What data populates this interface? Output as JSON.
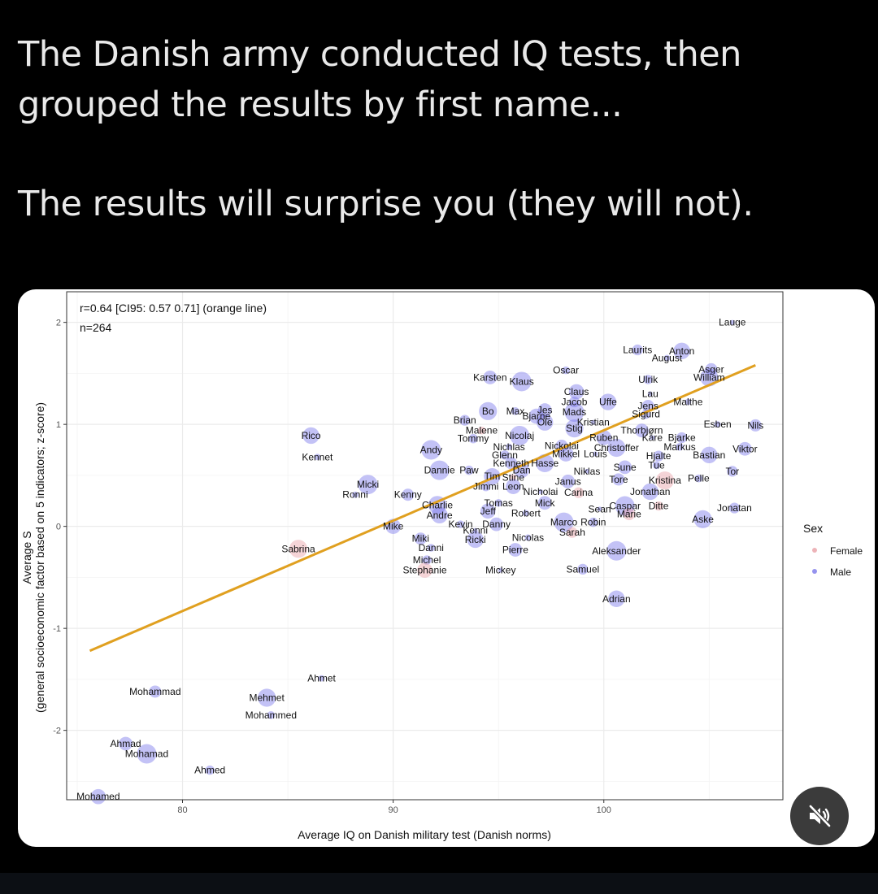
{
  "post": {
    "line1": "The Danish army conducted IQ tests, then",
    "line2": "grouped the results by first name...",
    "line3": "The results will surprise you (they will not)."
  },
  "colors": {
    "female": "#e8a0a6",
    "male": "#7b78ea",
    "fit_line": "#e0a020",
    "grid": "#ebebeb"
  },
  "mute_button": {
    "icon": "speaker-muted-icon"
  },
  "chart_data": {
    "type": "scatter",
    "annotation_1": "r=0.64 [CI95: 0.57 0.71] (orange line)",
    "annotation_2": "n=264",
    "xlabel": "Average IQ on Danish military test (Danish norms)",
    "ylabel_line1": "Average S",
    "ylabel_line2": "(general socioeconomic factor based on 5 indicators; z-score)",
    "xlim": [
      74.5,
      108.5
    ],
    "ylim": [
      -2.68,
      2.3
    ],
    "x_ticks": [
      "80",
      "90",
      "100"
    ],
    "y_ticks": [
      "-2",
      "-1",
      "0",
      "1",
      "2"
    ],
    "legend": {
      "title": "Sex",
      "items": [
        "Female",
        "Male"
      ],
      "position": "right"
    },
    "fit_line": {
      "x": [
        75.6,
        107.2
      ],
      "y": [
        -1.22,
        1.58
      ]
    },
    "points": [
      {
        "name": "Lauge",
        "x": 106.1,
        "y": 2.0,
        "sex": "Male"
      },
      {
        "name": "Laurits",
        "x": 101.6,
        "y": 1.73,
        "sex": "Male"
      },
      {
        "name": "Anton",
        "x": 103.7,
        "y": 1.72,
        "sex": "Male"
      },
      {
        "name": "August",
        "x": 103.0,
        "y": 1.65,
        "sex": "Male"
      },
      {
        "name": "Asger",
        "x": 105.1,
        "y": 1.54,
        "sex": "Male"
      },
      {
        "name": "William",
        "x": 105.0,
        "y": 1.46,
        "sex": "Male"
      },
      {
        "name": "Oscar",
        "x": 98.2,
        "y": 1.53,
        "sex": "Male"
      },
      {
        "name": "Karsten",
        "x": 94.6,
        "y": 1.46,
        "sex": "Male"
      },
      {
        "name": "Klaus",
        "x": 96.1,
        "y": 1.42,
        "sex": "Male"
      },
      {
        "name": "Ulrik",
        "x": 102.1,
        "y": 1.44,
        "sex": "Male"
      },
      {
        "name": "Claus",
        "x": 98.7,
        "y": 1.32,
        "sex": "Male"
      },
      {
        "name": "Lau",
        "x": 102.2,
        "y": 1.3,
        "sex": "Male"
      },
      {
        "name": "Jacob",
        "x": 98.6,
        "y": 1.22,
        "sex": "Male"
      },
      {
        "name": "Uffe",
        "x": 100.2,
        "y": 1.22,
        "sex": "Male"
      },
      {
        "name": "Malthe",
        "x": 104.0,
        "y": 1.22,
        "sex": "Male"
      },
      {
        "name": "Jens",
        "x": 102.1,
        "y": 1.18,
        "sex": "Male"
      },
      {
        "name": "Bo",
        "x": 94.5,
        "y": 1.13,
        "sex": "Male"
      },
      {
        "name": "Max",
        "x": 95.8,
        "y": 1.13,
        "sex": "Male"
      },
      {
        "name": "Jes",
        "x": 97.2,
        "y": 1.14,
        "sex": "Male"
      },
      {
        "name": "Mads",
        "x": 98.6,
        "y": 1.12,
        "sex": "Male"
      },
      {
        "name": "Sigurd",
        "x": 102.0,
        "y": 1.1,
        "sex": "Male"
      },
      {
        "name": "Bjarne",
        "x": 96.8,
        "y": 1.08,
        "sex": "Male"
      },
      {
        "name": "Kristian",
        "x": 99.5,
        "y": 1.02,
        "sex": "Male"
      },
      {
        "name": "Brian",
        "x": 93.4,
        "y": 1.04,
        "sex": "Male"
      },
      {
        "name": "Ole",
        "x": 97.2,
        "y": 1.02,
        "sex": "Male"
      },
      {
        "name": "Esben",
        "x": 105.4,
        "y": 1.0,
        "sex": "Male"
      },
      {
        "name": "Nils",
        "x": 107.2,
        "y": 0.99,
        "sex": "Male"
      },
      {
        "name": "Stig",
        "x": 98.6,
        "y": 0.96,
        "sex": "Male"
      },
      {
        "name": "Malene",
        "x": 94.2,
        "y": 0.94,
        "sex": "Female"
      },
      {
        "name": "Thorbjørn",
        "x": 101.8,
        "y": 0.94,
        "sex": "Male"
      },
      {
        "name": "Nicolaj",
        "x": 96.0,
        "y": 0.89,
        "sex": "Male"
      },
      {
        "name": "Tommy",
        "x": 93.8,
        "y": 0.86,
        "sex": "Male"
      },
      {
        "name": "Ruben",
        "x": 100.0,
        "y": 0.87,
        "sex": "Male"
      },
      {
        "name": "Kåre",
        "x": 102.3,
        "y": 0.87,
        "sex": "Male"
      },
      {
        "name": "Bjarke",
        "x": 103.7,
        "y": 0.87,
        "sex": "Male"
      },
      {
        "name": "Rico",
        "x": 86.1,
        "y": 0.89,
        "sex": "Male"
      },
      {
        "name": "Nichlas",
        "x": 95.5,
        "y": 0.78,
        "sex": "Male"
      },
      {
        "name": "Nickolai",
        "x": 98.0,
        "y": 0.79,
        "sex": "Male"
      },
      {
        "name": "Christoffer",
        "x": 100.6,
        "y": 0.77,
        "sex": "Male"
      },
      {
        "name": "Markus",
        "x": 103.6,
        "y": 0.78,
        "sex": "Male"
      },
      {
        "name": "Viktor",
        "x": 106.7,
        "y": 0.76,
        "sex": "Male"
      },
      {
        "name": "Andy",
        "x": 91.8,
        "y": 0.75,
        "sex": "Male"
      },
      {
        "name": "Glenn",
        "x": 95.3,
        "y": 0.7,
        "sex": "Male"
      },
      {
        "name": "Mikkel",
        "x": 98.2,
        "y": 0.71,
        "sex": "Male"
      },
      {
        "name": "Louis",
        "x": 99.6,
        "y": 0.71,
        "sex": "Male"
      },
      {
        "name": "Hjalte",
        "x": 102.6,
        "y": 0.69,
        "sex": "Male"
      },
      {
        "name": "Bastian",
        "x": 105.0,
        "y": 0.7,
        "sex": "Male"
      },
      {
        "name": "Kennet",
        "x": 86.4,
        "y": 0.68,
        "sex": "Male"
      },
      {
        "name": "Kenneth",
        "x": 95.6,
        "y": 0.62,
        "sex": "Male"
      },
      {
        "name": "Hasse",
        "x": 97.2,
        "y": 0.62,
        "sex": "Male"
      },
      {
        "name": "Tue",
        "x": 102.5,
        "y": 0.6,
        "sex": "Male"
      },
      {
        "name": "Sune",
        "x": 101.0,
        "y": 0.58,
        "sex": "Male"
      },
      {
        "name": "Dannie",
        "x": 92.2,
        "y": 0.55,
        "sex": "Male"
      },
      {
        "name": "Paw",
        "x": 93.6,
        "y": 0.55,
        "sex": "Male"
      },
      {
        "name": "Dan",
        "x": 96.1,
        "y": 0.55,
        "sex": "Male"
      },
      {
        "name": "Niklas",
        "x": 99.2,
        "y": 0.54,
        "sex": "Male"
      },
      {
        "name": "Tor",
        "x": 106.1,
        "y": 0.54,
        "sex": "Male"
      },
      {
        "name": "Tim",
        "x": 94.7,
        "y": 0.49,
        "sex": "Male"
      },
      {
        "name": "Stine",
        "x": 95.7,
        "y": 0.48,
        "sex": "Female"
      },
      {
        "name": "Tore",
        "x": 100.7,
        "y": 0.46,
        "sex": "Male"
      },
      {
        "name": "Kristina",
        "x": 102.9,
        "y": 0.45,
        "sex": "Female"
      },
      {
        "name": "Pelle",
        "x": 104.5,
        "y": 0.47,
        "sex": "Male"
      },
      {
        "name": "Janus",
        "x": 98.3,
        "y": 0.44,
        "sex": "Male"
      },
      {
        "name": "Micki",
        "x": 88.8,
        "y": 0.41,
        "sex": "Male"
      },
      {
        "name": "Jimmi",
        "x": 94.4,
        "y": 0.39,
        "sex": "Male"
      },
      {
        "name": "Leon",
        "x": 95.7,
        "y": 0.39,
        "sex": "Male"
      },
      {
        "name": "Nicholai",
        "x": 97.0,
        "y": 0.34,
        "sex": "Male"
      },
      {
        "name": "Carina",
        "x": 98.8,
        "y": 0.33,
        "sex": "Female"
      },
      {
        "name": "Jonathan",
        "x": 102.2,
        "y": 0.34,
        "sex": "Male"
      },
      {
        "name": "Ronni",
        "x": 88.2,
        "y": 0.31,
        "sex": "Male"
      },
      {
        "name": "Kenny",
        "x": 90.7,
        "y": 0.31,
        "sex": "Male"
      },
      {
        "name": "Charlie",
        "x": 92.1,
        "y": 0.21,
        "sex": "Male"
      },
      {
        "name": "Tomas",
        "x": 95.0,
        "y": 0.23,
        "sex": "Male"
      },
      {
        "name": "Mick",
        "x": 97.2,
        "y": 0.23,
        "sex": "Male"
      },
      {
        "name": "Caspar",
        "x": 101.0,
        "y": 0.2,
        "sex": "Male"
      },
      {
        "name": "Ditte",
        "x": 102.6,
        "y": 0.2,
        "sex": "Female"
      },
      {
        "name": "Jeff",
        "x": 94.5,
        "y": 0.15,
        "sex": "Male"
      },
      {
        "name": "Sean",
        "x": 99.8,
        "y": 0.17,
        "sex": "Male"
      },
      {
        "name": "Jonatan",
        "x": 106.2,
        "y": 0.18,
        "sex": "Male"
      },
      {
        "name": "Andre",
        "x": 92.2,
        "y": 0.11,
        "sex": "Male"
      },
      {
        "name": "Robert",
        "x": 96.3,
        "y": 0.13,
        "sex": "Male"
      },
      {
        "name": "Marie",
        "x": 101.2,
        "y": 0.12,
        "sex": "Female"
      },
      {
        "name": "Aske",
        "x": 104.7,
        "y": 0.07,
        "sex": "Male"
      },
      {
        "name": "Kevin",
        "x": 93.2,
        "y": 0.02,
        "sex": "Male"
      },
      {
        "name": "Danny",
        "x": 94.9,
        "y": 0.02,
        "sex": "Male"
      },
      {
        "name": "Marco",
        "x": 98.1,
        "y": 0.04,
        "sex": "Male"
      },
      {
        "name": "Robin",
        "x": 99.5,
        "y": 0.04,
        "sex": "Male"
      },
      {
        "name": "Mike",
        "x": 90.0,
        "y": 0.0,
        "sex": "Male"
      },
      {
        "name": "Kenni",
        "x": 93.9,
        "y": -0.04,
        "sex": "Male"
      },
      {
        "name": "Sarah",
        "x": 98.5,
        "y": -0.06,
        "sex": "Female"
      },
      {
        "name": "Ricki",
        "x": 93.9,
        "y": -0.13,
        "sex": "Male"
      },
      {
        "name": "Nicolas",
        "x": 96.4,
        "y": -0.11,
        "sex": "Male"
      },
      {
        "name": "Miki",
        "x": 91.3,
        "y": -0.12,
        "sex": "Male"
      },
      {
        "name": "Sabrina",
        "x": 85.5,
        "y": -0.22,
        "sex": "Female"
      },
      {
        "name": "Danni",
        "x": 91.8,
        "y": -0.21,
        "sex": "Male"
      },
      {
        "name": "Pierre",
        "x": 95.8,
        "y": -0.23,
        "sex": "Male"
      },
      {
        "name": "Aleksander",
        "x": 100.6,
        "y": -0.24,
        "sex": "Male"
      },
      {
        "name": "Michel",
        "x": 91.6,
        "y": -0.33,
        "sex": "Male"
      },
      {
        "name": "Stephanie",
        "x": 91.5,
        "y": -0.43,
        "sex": "Female"
      },
      {
        "name": "Mickey",
        "x": 95.1,
        "y": -0.43,
        "sex": "Male"
      },
      {
        "name": "Samuel",
        "x": 99.0,
        "y": -0.42,
        "sex": "Male"
      },
      {
        "name": "Adrian",
        "x": 100.6,
        "y": -0.71,
        "sex": "Male"
      },
      {
        "name": "Ahmet",
        "x": 86.6,
        "y": -1.49,
        "sex": "Male"
      },
      {
        "name": "Mohammad",
        "x": 78.7,
        "y": -1.62,
        "sex": "Male"
      },
      {
        "name": "Mehmet",
        "x": 84.0,
        "y": -1.68,
        "sex": "Male"
      },
      {
        "name": "Mohammed",
        "x": 84.2,
        "y": -1.85,
        "sex": "Male"
      },
      {
        "name": "Ahmad",
        "x": 77.3,
        "y": -2.13,
        "sex": "Male"
      },
      {
        "name": "Mohamad",
        "x": 78.3,
        "y": -2.23,
        "sex": "Male"
      },
      {
        "name": "Ahmed",
        "x": 81.3,
        "y": -2.39,
        "sex": "Male"
      },
      {
        "name": "Mohamed",
        "x": 76.0,
        "y": -2.65,
        "sex": "Male"
      }
    ]
  }
}
